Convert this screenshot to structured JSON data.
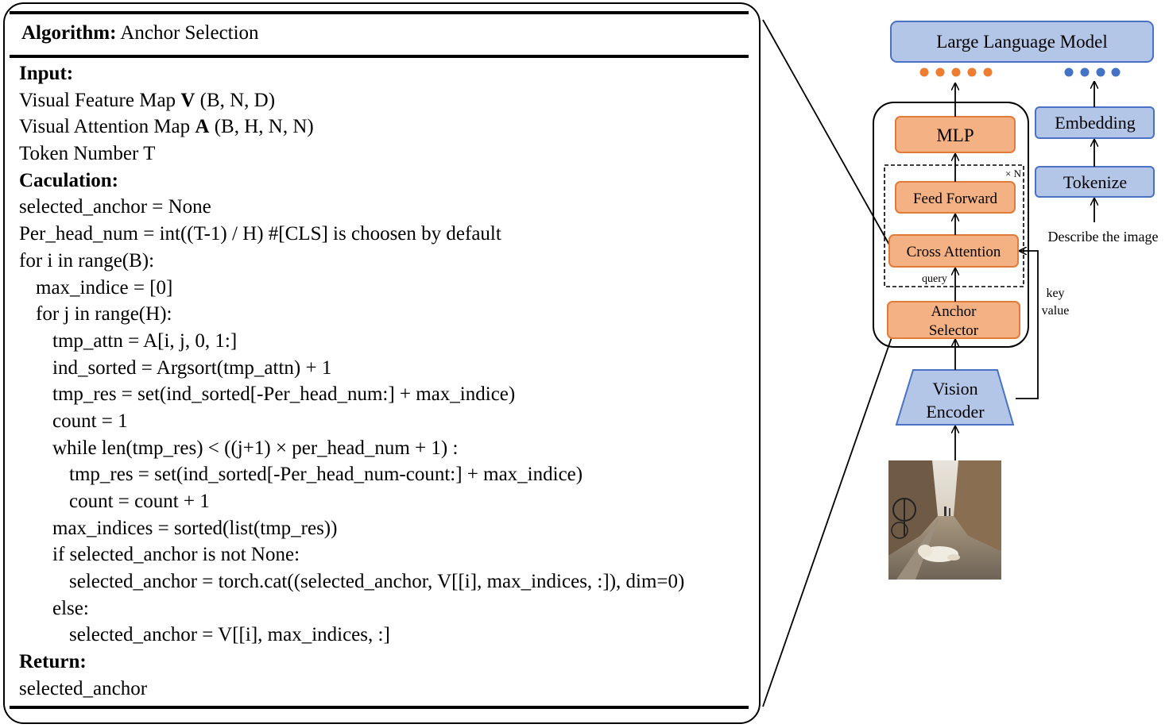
{
  "algorithm": {
    "title_bold": "Algorithm:",
    "title_rest": "Anchor Selection",
    "lines": [
      {
        "indent": 0,
        "bold": "Input:",
        "pre": "",
        "strong": "",
        "post": ""
      },
      {
        "indent": 0,
        "bold": "",
        "pre": "Visual Feature Map ",
        "strong": "V",
        "post": " (B, N, D)"
      },
      {
        "indent": 0,
        "bold": "",
        "pre": "Visual Attention Map ",
        "strong": "A",
        "post": " (B, H, N, N)"
      },
      {
        "indent": 0,
        "bold": "",
        "pre": "Token Number T",
        "strong": "",
        "post": ""
      },
      {
        "indent": 0,
        "bold": "Caculation:",
        "pre": "",
        "strong": "",
        "post": ""
      },
      {
        "indent": 0,
        "bold": "",
        "pre": "selected_anchor = None",
        "strong": "",
        "post": ""
      },
      {
        "indent": 0,
        "bold": "",
        "pre": "Per_head_num = int((T-1) / H) #[CLS] is choosen by default",
        "strong": "",
        "post": ""
      },
      {
        "indent": 0,
        "bold": "",
        "pre": "for i in range(B):",
        "strong": "",
        "post": ""
      },
      {
        "indent": 1,
        "bold": "",
        "pre": "max_indice = [0]",
        "strong": "",
        "post": ""
      },
      {
        "indent": 1,
        "bold": "",
        "pre": "for j in range(H):",
        "strong": "",
        "post": ""
      },
      {
        "indent": 2,
        "bold": "",
        "pre": "tmp_attn = A[i, j, 0, 1:]",
        "strong": "",
        "post": ""
      },
      {
        "indent": 2,
        "bold": "",
        "pre": "ind_sorted = Argsort(tmp_attn) + 1",
        "strong": "",
        "post": ""
      },
      {
        "indent": 2,
        "bold": "",
        "pre": "tmp_res = set(ind_sorted[-Per_head_num:] + max_indice)",
        "strong": "",
        "post": ""
      },
      {
        "indent": 2,
        "bold": "",
        "pre": "count = 1",
        "strong": "",
        "post": ""
      },
      {
        "indent": 2,
        "bold": "",
        "pre": "while len(tmp_res) < ((j+1) × per_head_num + 1) :",
        "strong": "",
        "post": ""
      },
      {
        "indent": 3,
        "bold": "",
        "pre": "tmp_res = set(ind_sorted[-Per_head_num-count:] + max_indice)",
        "strong": "",
        "post": ""
      },
      {
        "indent": 3,
        "bold": "",
        "pre": "count = count + 1",
        "strong": "",
        "post": ""
      },
      {
        "indent": 2,
        "bold": "",
        "pre": "max_indices = sorted(list(tmp_res))",
        "strong": "",
        "post": ""
      },
      {
        "indent": 2,
        "bold": "",
        "pre": "if selected_anchor is not None:",
        "strong": "",
        "post": ""
      },
      {
        "indent": 3,
        "bold": "",
        "pre": "selected_anchor = torch.cat((selected_anchor, V[[i], max_indices, :]), dim=0)",
        "strong": "",
        "post": ""
      },
      {
        "indent": 2,
        "bold": "",
        "pre": "else:",
        "strong": "",
        "post": ""
      },
      {
        "indent": 3,
        "bold": "",
        "pre": "selected_anchor = V[[i], max_indices, :]",
        "strong": "",
        "post": ""
      },
      {
        "indent": 0,
        "bold": "Return:",
        "pre": "",
        "strong": "",
        "post": ""
      },
      {
        "indent": 0,
        "bold": "",
        "pre": "selected_anchor",
        "strong": "",
        "post": ""
      }
    ]
  },
  "diagram": {
    "llm_label": "Large Language Model",
    "mlp_label": "MLP",
    "repeat_label": "× N",
    "feed_forward_label": "Feed Forward",
    "cross_attention_label": "Cross Attention",
    "query_label": "query",
    "anchor_selector_line1": "Anchor",
    "anchor_selector_line2": "Selector",
    "vision_encoder_line1": "Vision",
    "vision_encoder_line2": "Encoder",
    "embedding_label": "Embedding",
    "tokenize_label": "Tokenize",
    "prompt_text": "Describe the image",
    "key_label": "key",
    "value_label": "value",
    "colors": {
      "blue_fill": "#b4c6e7",
      "blue_stroke": "#4a72c4",
      "orange_fill": "#f4b183",
      "orange_stroke": "#e07b39",
      "orange_dot": "#ed7d31",
      "blue_dot": "#4472c4",
      "red_text": "#d9405b"
    }
  }
}
